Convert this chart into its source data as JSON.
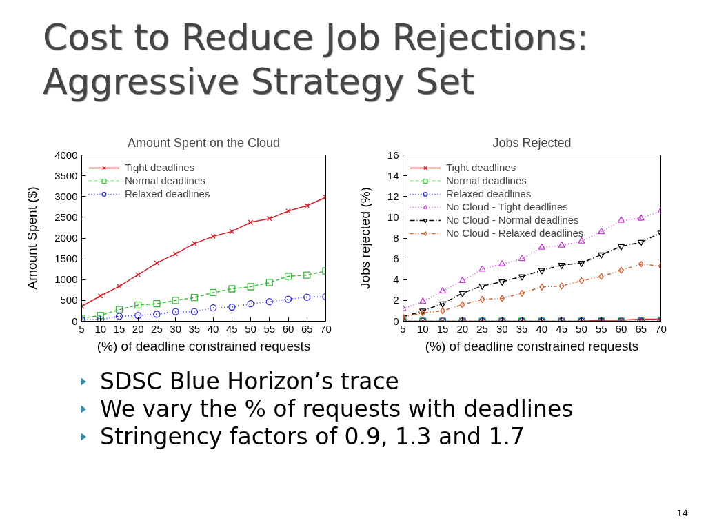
{
  "chart_data": [
    {
      "type": "other",
      "title": "Cost to Reduce Job Rejections: Aggressive Strategy Set"
    },
    {
      "type": "line",
      "title": "Amount Spent on the Cloud",
      "xlabel": "(%) of deadline constrained requests",
      "ylabel": "Amount Spent ($)",
      "x": [
        5,
        10,
        15,
        20,
        25,
        30,
        35,
        40,
        45,
        50,
        55,
        60,
        65,
        70
      ],
      "xlim": [
        5,
        70
      ],
      "xticks": [
        5,
        10,
        15,
        20,
        25,
        30,
        35,
        40,
        45,
        50,
        55,
        60,
        65,
        70
      ],
      "ylim": [
        0,
        4000
      ],
      "yticks": [
        0,
        500,
        1000,
        1500,
        2000,
        2500,
        3000,
        3500,
        4000
      ],
      "legend": "top left",
      "series": [
        {
          "name": "Tight deadlines",
          "color": "#d0202a",
          "marker": "cross",
          "line_style": "solid",
          "values": [
            360,
            610,
            840,
            1120,
            1400,
            1620,
            1870,
            2040,
            2160,
            2380,
            2470,
            2650,
            2780,
            2980
          ]
        },
        {
          "name": "Normal deadlines",
          "color": "#3dbb3d",
          "marker": "square",
          "line_style": "dashed",
          "values": [
            70,
            140,
            280,
            390,
            420,
            500,
            570,
            690,
            780,
            830,
            930,
            1080,
            1110,
            1210
          ]
        },
        {
          "name": "Relaxed deadlines",
          "color": "#2b2bcc",
          "marker": "circle",
          "line_style": "dotted",
          "values": [
            40,
            40,
            120,
            140,
            170,
            230,
            230,
            320,
            340,
            420,
            470,
            530,
            580,
            590
          ]
        }
      ]
    },
    {
      "type": "line",
      "title": "Jobs Rejected",
      "xlabel": "(%) of deadline constrained requests",
      "ylabel": "Jobs rejected (%)",
      "x": [
        5,
        10,
        15,
        20,
        25,
        30,
        35,
        40,
        45,
        50,
        55,
        60,
        65,
        70
      ],
      "xlim": [
        5,
        70
      ],
      "xticks": [
        5,
        10,
        15,
        20,
        25,
        30,
        35,
        40,
        45,
        50,
        55,
        60,
        65,
        70
      ],
      "ylim": [
        0,
        16
      ],
      "yticks": [
        0,
        2,
        4,
        6,
        8,
        10,
        12,
        14,
        16
      ],
      "legend": "top left",
      "series": [
        {
          "name": "Tight deadlines",
          "color": "#d0202a",
          "marker": "cross",
          "line_style": "solid",
          "values": [
            0,
            0,
            0,
            0,
            0,
            0,
            0,
            0,
            0,
            0,
            0.1,
            0.1,
            0.2,
            0.2
          ]
        },
        {
          "name": "Normal deadlines",
          "color": "#3dbb3d",
          "marker": "square",
          "line_style": "dashed",
          "values": [
            0,
            0,
            0,
            0,
            0,
            0,
            0,
            0,
            0,
            0,
            0,
            0,
            0,
            0
          ]
        },
        {
          "name": "Relaxed deadlines",
          "color": "#2b2bcc",
          "marker": "circle",
          "line_style": "dotted",
          "values": [
            0,
            0,
            0,
            0,
            0,
            0,
            0,
            0,
            0,
            0,
            0,
            0,
            0,
            0
          ]
        },
        {
          "name": "No Cloud - Tight deadlines",
          "color": "#c33fd0",
          "marker": "triangle",
          "line_style": "dotted",
          "values": [
            1.2,
            1.9,
            2.9,
            3.9,
            5.0,
            5.5,
            6.0,
            7.1,
            7.3,
            7.7,
            8.6,
            9.7,
            9.9,
            10.6
          ]
        },
        {
          "name": "No Cloud - Normal deadlines",
          "color": "#000000",
          "marker": "triangle_down",
          "line_style": "dashdot",
          "values": [
            0.4,
            1.0,
            1.7,
            2.7,
            3.4,
            3.8,
            4.3,
            4.9,
            5.4,
            5.6,
            6.4,
            7.2,
            7.6,
            8.5
          ]
        },
        {
          "name": "No Cloud - Relaxed deadlines",
          "color": "#cc5a2a",
          "marker": "diamond",
          "line_style": "dashdotdot",
          "values": [
            0.4,
            0.8,
            1.0,
            1.6,
            2.1,
            2.2,
            2.7,
            3.3,
            3.4,
            3.9,
            4.3,
            4.9,
            5.5,
            5.3
          ]
        }
      ]
    },
    {
      "type": "other",
      "annotations": [
        "SDSC Blue Horizon’s trace",
        "We vary the % of requests with deadlines",
        "Stringency factors of 0.9, 1.3 and 1.7",
        "14"
      ]
    }
  ]
}
